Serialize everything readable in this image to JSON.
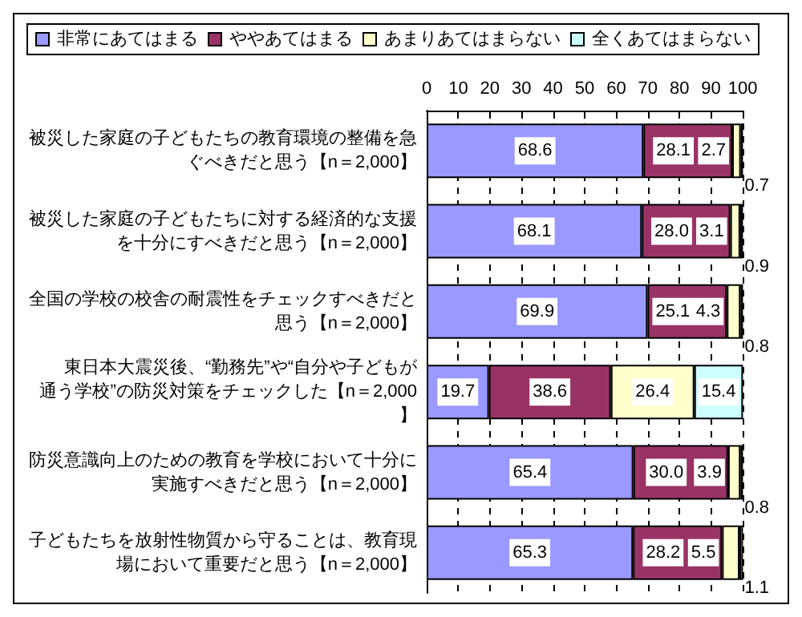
{
  "chart_data": {
    "type": "bar",
    "orientation": "horizontal",
    "stacked": true,
    "categories": [
      "被災した家庭の子どもたちの教育環境の整備を急ぐべきだと思う【n＝2,000】",
      "被災した家庭の子どもたちに対する経済的な支援を十分にすべきだと思う【n＝2,000】",
      "全国の学校の校舎の耐震性をチェックすべきだと思う【n＝2,000】",
      "東日本大震災後、“勤務先”や“自分や子どもが通う学校”の防災対策をチェックした【n＝2,000】",
      "防災意識向上のための教育を学校において十分に実施すべきだと思う【n＝2,000】",
      "子どもたちを放射性物質から守ることは、教育現場において重要だと思う【n＝2,000】"
    ],
    "series": [
      {
        "name": "非常にあてはまる",
        "color": "#9999ff",
        "values": [
          68.6,
          68.1,
          69.9,
          19.7,
          65.4,
          65.3
        ],
        "value_labels": [
          "68.6",
          "68.1",
          "69.9",
          "19.7",
          "65.4",
          "65.3"
        ]
      },
      {
        "name": "ややあてはまる",
        "color": "#993366",
        "values": [
          28.1,
          28.0,
          25.1,
          38.6,
          30.0,
          28.2
        ],
        "value_labels": [
          "28.1",
          "28.0",
          "25.1",
          "38.6",
          "30.0",
          "28.2"
        ]
      },
      {
        "name": "あまりあてはまらない",
        "color": "#ffffcc",
        "values": [
          2.7,
          3.1,
          4.3,
          26.4,
          3.9,
          5.5
        ],
        "value_labels": [
          "2.7",
          "3.1",
          "4.3",
          "26.4",
          "3.9",
          "5.5"
        ]
      },
      {
        "name": "全くあてはまらない",
        "color": "#ccffff",
        "values": [
          0.7,
          0.9,
          0.8,
          15.4,
          0.8,
          1.1
        ],
        "value_labels": [
          "0.7",
          "0.9",
          "0.8",
          "15.4",
          "0.8",
          "1.1"
        ]
      }
    ],
    "xlim": [
      0,
      100
    ],
    "xticks": [
      0,
      10,
      20,
      30,
      40,
      50,
      60,
      70,
      80,
      90,
      100
    ],
    "grid": "x",
    "legend": "top"
  }
}
